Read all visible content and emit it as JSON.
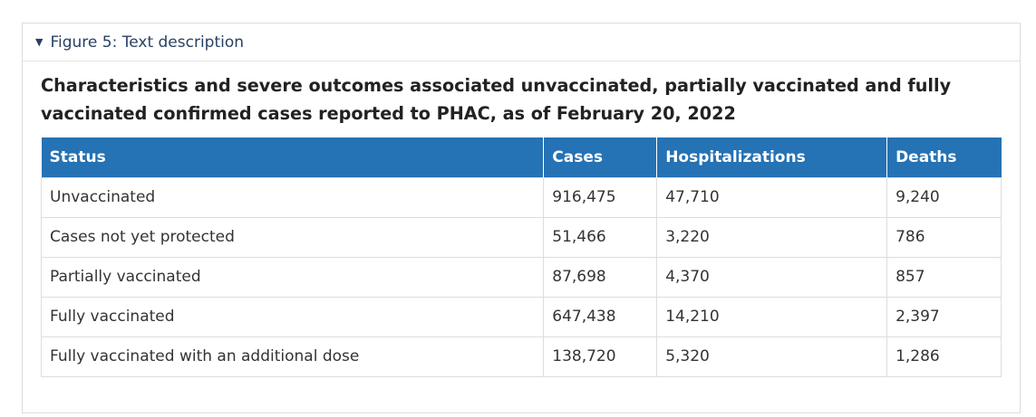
{
  "details": {
    "summary_label": "Figure 5: Text description"
  },
  "table": {
    "caption": "Characteristics and severe outcomes associated unvaccinated, partially vaccinated and fully vaccinated confirmed cases reported to PHAC, as of February 20, 2022",
    "headers": [
      "Status",
      "Cases",
      "Hospitalizations",
      "Deaths"
    ],
    "rows": [
      [
        "Unvaccinated",
        "916,475",
        "47,710",
        "9,240"
      ],
      [
        "Cases not yet protected",
        "51,466",
        "3,220",
        "786"
      ],
      [
        "Partially vaccinated",
        "87,698",
        "4,370",
        "857"
      ],
      [
        "Fully vaccinated",
        "647,438",
        "14,210",
        "2,397"
      ],
      [
        "Fully vaccinated with an additional dose",
        "138,720",
        "5,320",
        "1,286"
      ]
    ]
  },
  "colors": {
    "header_bg": "#2572b4",
    "summary_text": "#284162"
  }
}
